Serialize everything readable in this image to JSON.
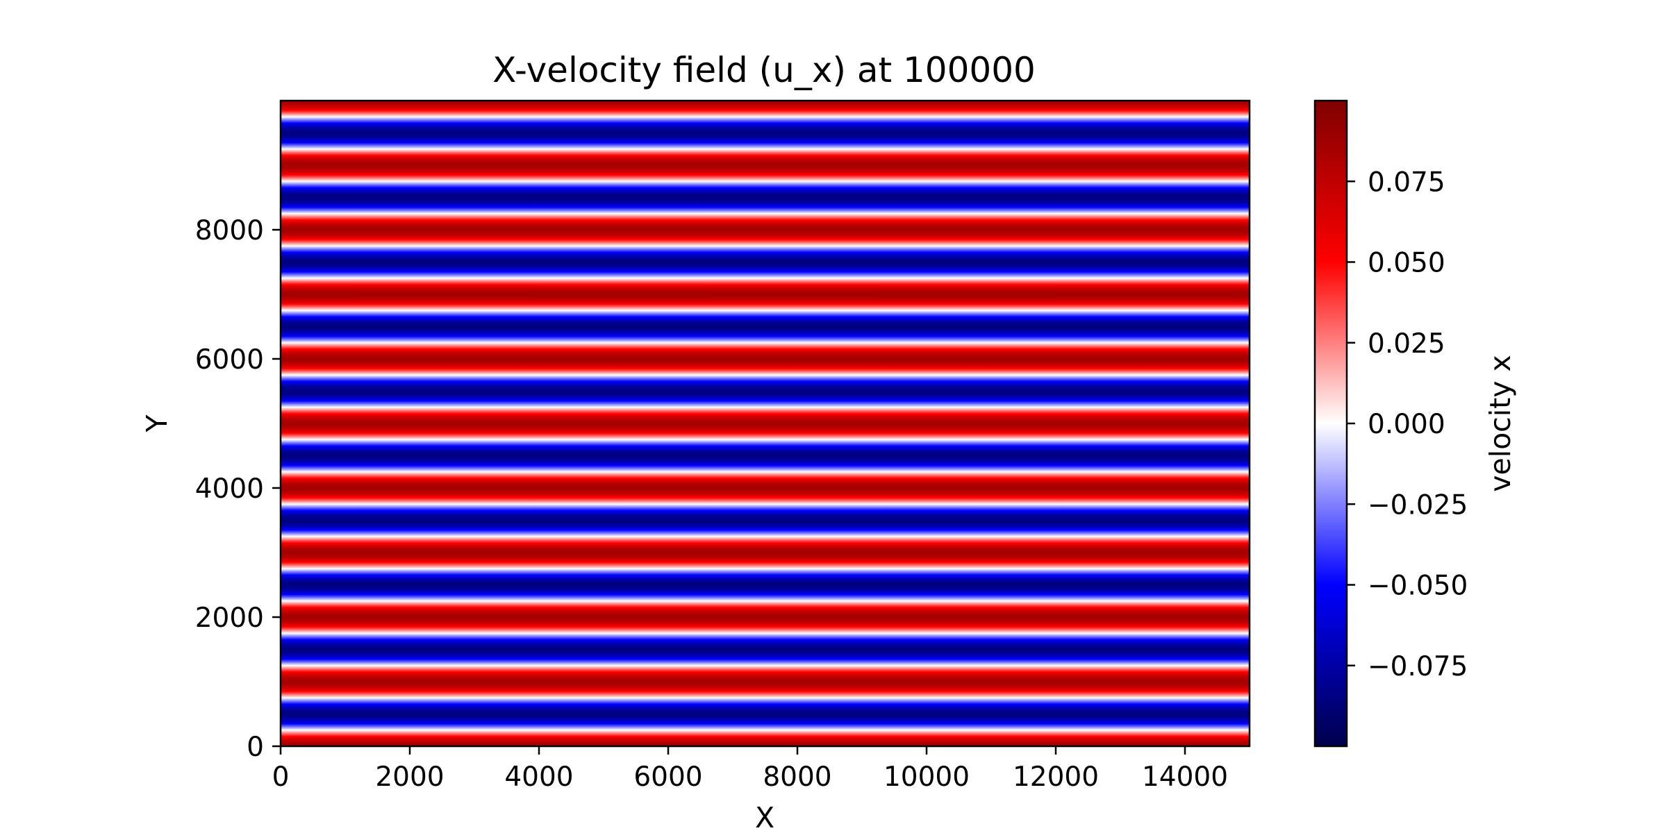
{
  "chart_data": {
    "type": "heatmap",
    "title": "X-velocity field (u_x) at 100000",
    "xlabel": "X",
    "ylabel": "Y",
    "xlim": [
      0,
      15000
    ],
    "ylim": [
      0,
      10000
    ],
    "x_ticks": [
      {
        "value": 0,
        "label": "0"
      },
      {
        "value": 2000,
        "label": "2000"
      },
      {
        "value": 4000,
        "label": "4000"
      },
      {
        "value": 6000,
        "label": "6000"
      },
      {
        "value": 8000,
        "label": "8000"
      },
      {
        "value": 10000,
        "label": "10000"
      },
      {
        "value": 12000,
        "label": "12000"
      },
      {
        "value": 14000,
        "label": "14000"
      }
    ],
    "y_ticks": [
      {
        "value": 0,
        "label": "0"
      },
      {
        "value": 2000,
        "label": "2000"
      },
      {
        "value": 4000,
        "label": "4000"
      },
      {
        "value": 6000,
        "label": "6000"
      },
      {
        "value": 8000,
        "label": "8000"
      }
    ],
    "field": {
      "component": "u_x",
      "profile": "sinusoidal in y, uniform in x",
      "amplitude": 0.085,
      "wavelength_y": 1000,
      "value_at_y0": 0.085
    },
    "colorbar": {
      "label": "velocity x",
      "colormap": "seismic",
      "vmin": -0.1,
      "vmax": 0.1,
      "ticks": [
        {
          "value": 0.075,
          "label": "0.075"
        },
        {
          "value": 0.05,
          "label": "0.050"
        },
        {
          "value": 0.025,
          "label": "0.025"
        },
        {
          "value": 0.0,
          "label": "0.000"
        },
        {
          "value": -0.025,
          "label": "−0.025"
        },
        {
          "value": -0.05,
          "label": "−0.050"
        },
        {
          "value": -0.075,
          "label": "−0.075"
        }
      ],
      "colors": [
        "#00004c",
        "#0000ff",
        "#ffffff",
        "#ff0000",
        "#800000"
      ]
    },
    "grid": false
  }
}
